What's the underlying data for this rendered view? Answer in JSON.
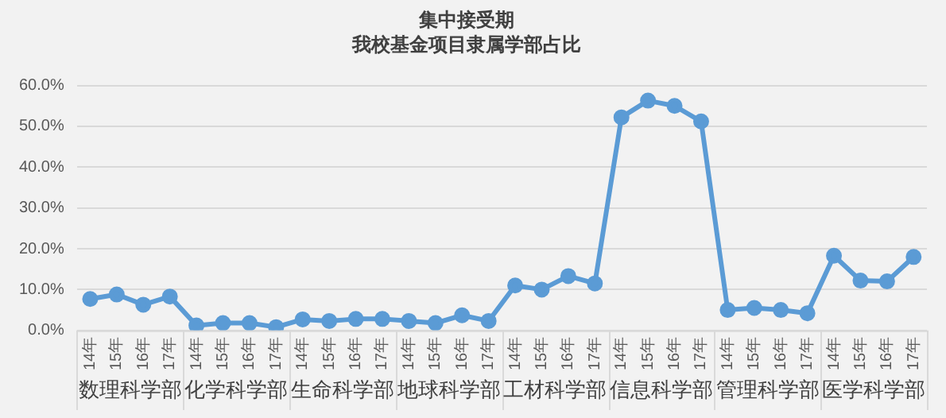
{
  "chart_data": {
    "type": "line",
    "title": "集中接受期",
    "subtitle": "我校基金项目隶属学部占比",
    "categories": [
      "14年",
      "15年",
      "16年",
      "17年",
      "14年",
      "15年",
      "16年",
      "17年",
      "14年",
      "15年",
      "16年",
      "17年",
      "14年",
      "15年",
      "16年",
      "17年",
      "14年",
      "15年",
      "16年",
      "17年",
      "14年",
      "15年",
      "16年",
      "17年",
      "14年",
      "15年",
      "16年",
      "17年",
      "14年",
      "15年",
      "16年",
      "17年"
    ],
    "annotations": [
      "数理科学部",
      "化学科学部",
      "生命科学部",
      "地球科学部",
      "工材科学部",
      "信息科学部",
      "管理科学部",
      "医学科学部"
    ],
    "series": [
      {
        "color": "#5b9bd5",
        "values": [
          7.7,
          8.8,
          6.3,
          8.3,
          1.2,
          1.8,
          1.8,
          0.8,
          2.7,
          2.3,
          2.8,
          2.8,
          2.3,
          1.8,
          3.7,
          2.3,
          11,
          10,
          13.3,
          11.5,
          52.2,
          56.3,
          55,
          51.2,
          5,
          5.5,
          5,
          4.2,
          18.3,
          12.2,
          12,
          18
        ]
      }
    ],
    "ylim": [
      0,
      60
    ],
    "yticks": [
      {
        "value": 0,
        "label": "0.0%"
      },
      {
        "value": 10,
        "label": "10.0%"
      },
      {
        "value": 20,
        "label": "20.0%"
      },
      {
        "value": 30,
        "label": "30.0%"
      },
      {
        "value": 40,
        "label": "40.0%"
      },
      {
        "value": 50,
        "label": "50.0%"
      },
      {
        "value": 60,
        "label": "60.0%"
      }
    ],
    "grid": "y",
    "marker": "circle",
    "line_style": "solid",
    "legend": false
  }
}
